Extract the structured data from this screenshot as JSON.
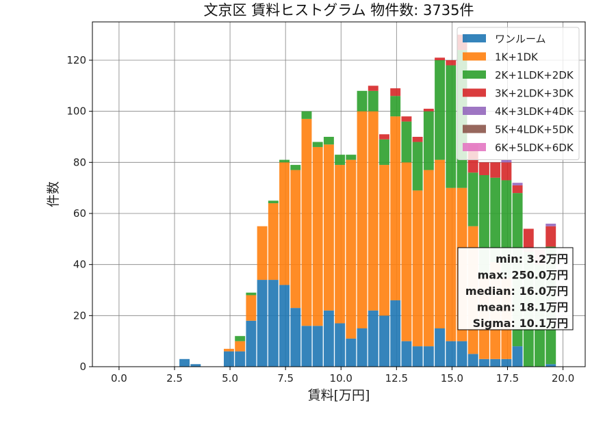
{
  "chart_data": {
    "type": "bar",
    "stacked": true,
    "title": "文京区 賃料ヒストグラム 物件数: 3735件",
    "xlabel": "賃料[万円]",
    "ylabel": "件数",
    "xlim": [
      -1.2,
      21.0
    ],
    "ylim": [
      0,
      135
    ],
    "xticks": [
      0.0,
      2.5,
      5.0,
      7.5,
      10.0,
      12.5,
      15.0,
      17.5,
      20.0
    ],
    "xtick_labels": [
      "0.0",
      "2.5",
      "5.0",
      "7.5",
      "10.0",
      "12.5",
      "15.0",
      "17.5",
      "20.0"
    ],
    "yticks": [
      0,
      20,
      40,
      60,
      80,
      100,
      120
    ],
    "ytick_labels": [
      "0",
      "20",
      "40",
      "60",
      "80",
      "100",
      "120"
    ],
    "grid": true,
    "legend_position": "top-right",
    "bin_centers": [
      2.95,
      3.45,
      3.95,
      4.45,
      4.95,
      5.45,
      5.95,
      6.45,
      6.95,
      7.45,
      7.95,
      8.45,
      8.95,
      9.45,
      9.95,
      10.45,
      10.95,
      11.45,
      11.95,
      12.45,
      12.95,
      13.45,
      13.95,
      14.45,
      14.95,
      15.45,
      15.95,
      16.45,
      16.95,
      17.45,
      17.95,
      18.45,
      18.95,
      19.45
    ],
    "bin_width": 0.5,
    "series": [
      {
        "name": "ワンルーム",
        "color": "#1f77b4",
        "values": [
          3,
          1,
          0,
          0,
          6,
          6,
          18,
          34,
          34,
          32,
          23,
          16,
          16,
          22,
          17,
          11,
          15,
          22,
          20,
          26,
          10,
          8,
          8,
          15,
          10,
          10,
          5,
          3,
          3,
          3,
          8,
          0,
          0,
          1
        ]
      },
      {
        "name": "1K+1DK",
        "color": "#ff7f0e",
        "values": [
          0,
          0,
          0,
          0,
          1,
          4,
          10,
          21,
          30,
          48,
          54,
          81,
          70,
          65,
          62,
          70,
          85,
          78,
          59,
          72,
          70,
          61,
          69,
          66,
          60,
          60,
          50,
          32,
          38,
          32,
          0,
          0,
          0,
          0
        ]
      },
      {
        "name": "2K+1LDK+2DK",
        "color": "#2ca02c",
        "values": [
          0,
          0,
          0,
          0,
          0,
          2,
          1,
          0,
          1,
          1,
          2,
          3,
          2,
          3,
          4,
          2,
          8,
          8,
          10,
          8,
          16,
          19,
          23,
          39,
          48,
          54,
          21,
          40,
          33,
          38,
          60,
          45,
          40,
          46
        ]
      },
      {
        "name": "3K+2LDK+3DK",
        "color": "#d62728",
        "values": [
          0,
          0,
          0,
          0,
          0,
          0,
          0,
          0,
          0,
          0,
          0,
          0,
          0,
          0,
          0,
          0,
          0,
          2,
          2,
          3,
          2,
          2,
          1,
          1,
          2,
          6,
          11,
          5,
          6,
          7,
          3,
          9,
          6,
          8
        ]
      },
      {
        "name": "4K+3LDK+4DK",
        "color": "#9467bd",
        "values": [
          0,
          0,
          0,
          0,
          0,
          0,
          0,
          0,
          0,
          0,
          0,
          0,
          0,
          0,
          0,
          0,
          0,
          0,
          0,
          0,
          0,
          0,
          0,
          0,
          0,
          0,
          0,
          0,
          0,
          1,
          1,
          0,
          0,
          1
        ]
      },
      {
        "name": "5K+4LDK+5DK",
        "color": "#8c564b",
        "values": [
          0,
          0,
          0,
          0,
          0,
          0,
          0,
          0,
          0,
          0,
          0,
          0,
          0,
          0,
          0,
          0,
          0,
          0,
          0,
          0,
          0,
          0,
          0,
          0,
          0,
          0,
          0,
          0,
          0,
          0,
          0,
          0,
          0,
          0
        ]
      },
      {
        "name": "6K+5LDK+6DK",
        "color": "#e377c2",
        "values": [
          0,
          0,
          0,
          0,
          0,
          0,
          0,
          0,
          0,
          0,
          0,
          0,
          0,
          0,
          0,
          0,
          0,
          0,
          0,
          0,
          0,
          0,
          0,
          0,
          0,
          0,
          0,
          0,
          0,
          0,
          0,
          0,
          0,
          0
        ]
      }
    ],
    "stats_lines": [
      "min: 3.2万円",
      "max: 250.0万円",
      "median: 16.0万円",
      "mean: 18.1万円",
      "Sigma: 10.1万円"
    ]
  }
}
